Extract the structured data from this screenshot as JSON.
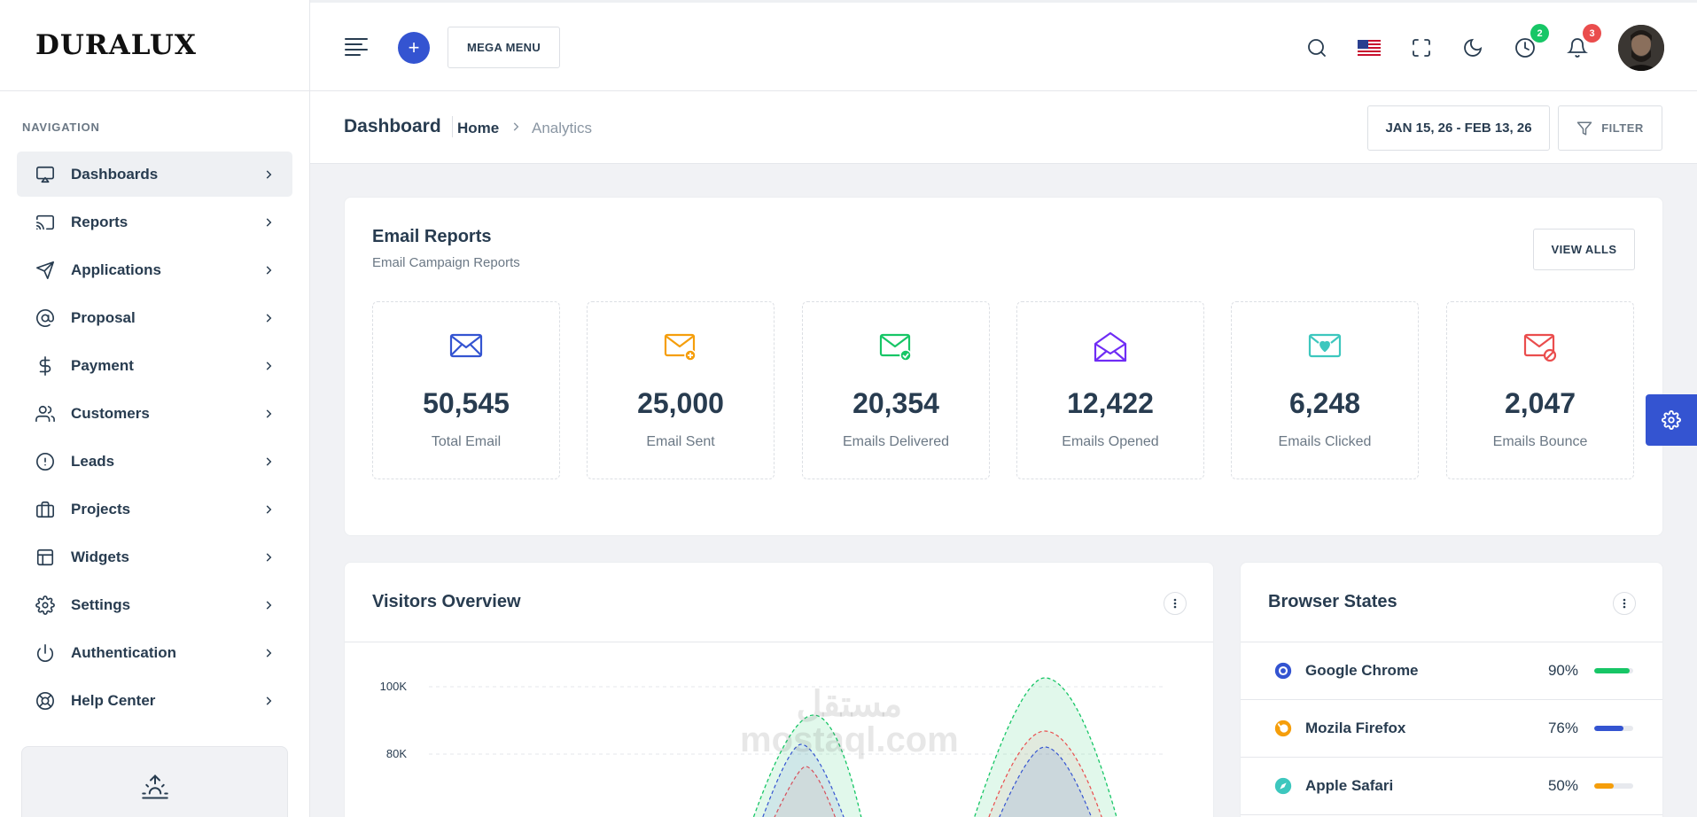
{
  "brand": {
    "logo": "DURALUX"
  },
  "sidebar": {
    "caption": "NAVIGATION",
    "items": [
      {
        "label": "Dashboards",
        "icon": "monitor-icon"
      },
      {
        "label": "Reports",
        "icon": "cast-icon"
      },
      {
        "label": "Applications",
        "icon": "send-icon"
      },
      {
        "label": "Proposal",
        "icon": "at-sign-icon"
      },
      {
        "label": "Payment",
        "icon": "dollar-icon"
      },
      {
        "label": "Customers",
        "icon": "users-icon"
      },
      {
        "label": "Leads",
        "icon": "alert-circle-icon"
      },
      {
        "label": "Projects",
        "icon": "briefcase-icon"
      },
      {
        "label": "Widgets",
        "icon": "layout-icon"
      },
      {
        "label": "Settings",
        "icon": "gear-icon"
      },
      {
        "label": "Authentication",
        "icon": "power-icon"
      },
      {
        "label": "Help Center",
        "icon": "lifebuoy-icon"
      }
    ]
  },
  "header": {
    "mega_menu": "MEGA MENU",
    "plus": "+",
    "timer_badge": "2",
    "bell_badge": "3"
  },
  "page": {
    "title": "Dashboard",
    "breadcrumb_home": "Home",
    "breadcrumb_current": "Analytics",
    "date_range": "JAN 15, 26 - FEB 13, 26",
    "filter_label": "FILTER"
  },
  "email_reports": {
    "title": "Email Reports",
    "subtitle": "Email Campaign Reports",
    "view_all": "VIEW ALLS",
    "stats": [
      {
        "value": "50,545",
        "label": "Total Email",
        "color": "#3454d1",
        "icon": "mail-icon"
      },
      {
        "value": "25,000",
        "label": "Email Sent",
        "color": "#f59e0b",
        "icon": "mail-plus-icon"
      },
      {
        "value": "20,354",
        "label": "Emails Delivered",
        "color": "#17c666",
        "icon": "mail-check-icon"
      },
      {
        "value": "12,422",
        "label": "Emails Opened",
        "color": "#6f2cf5",
        "icon": "mail-open-icon"
      },
      {
        "value": "6,248",
        "label": "Emails Clicked",
        "color": "#3dc7be",
        "icon": "mail-heart-icon"
      },
      {
        "value": "2,047",
        "label": "Emails Bounce",
        "color": "#ea4d4d",
        "icon": "mail-blocked-icon"
      }
    ]
  },
  "visitors": {
    "title": "Visitors Overview"
  },
  "chart_data": {
    "type": "area",
    "title": "Visitors Overview",
    "yticks": [
      "100K",
      "80K"
    ],
    "ylim": [
      60000,
      100000
    ],
    "grid": true
  },
  "browsers": {
    "title": "Browser States",
    "rows": [
      {
        "name": "Google Chrome",
        "percent": "90%",
        "value": 0.9,
        "color": "#17c666",
        "icon": "chrome-icon",
        "icon_color": "#3454d1"
      },
      {
        "name": "Mozila Firefox",
        "percent": "76%",
        "value": 0.76,
        "color": "#3454d1",
        "icon": "firefox-icon",
        "icon_color": "#f59e0b"
      },
      {
        "name": "Apple Safari",
        "percent": "50%",
        "value": 0.5,
        "color": "#f59e0b",
        "icon": "safari-icon",
        "icon_color": "#3dc7be"
      }
    ]
  },
  "watermark": {
    "line1": "مستقل",
    "line2": "mostaql.com"
  }
}
